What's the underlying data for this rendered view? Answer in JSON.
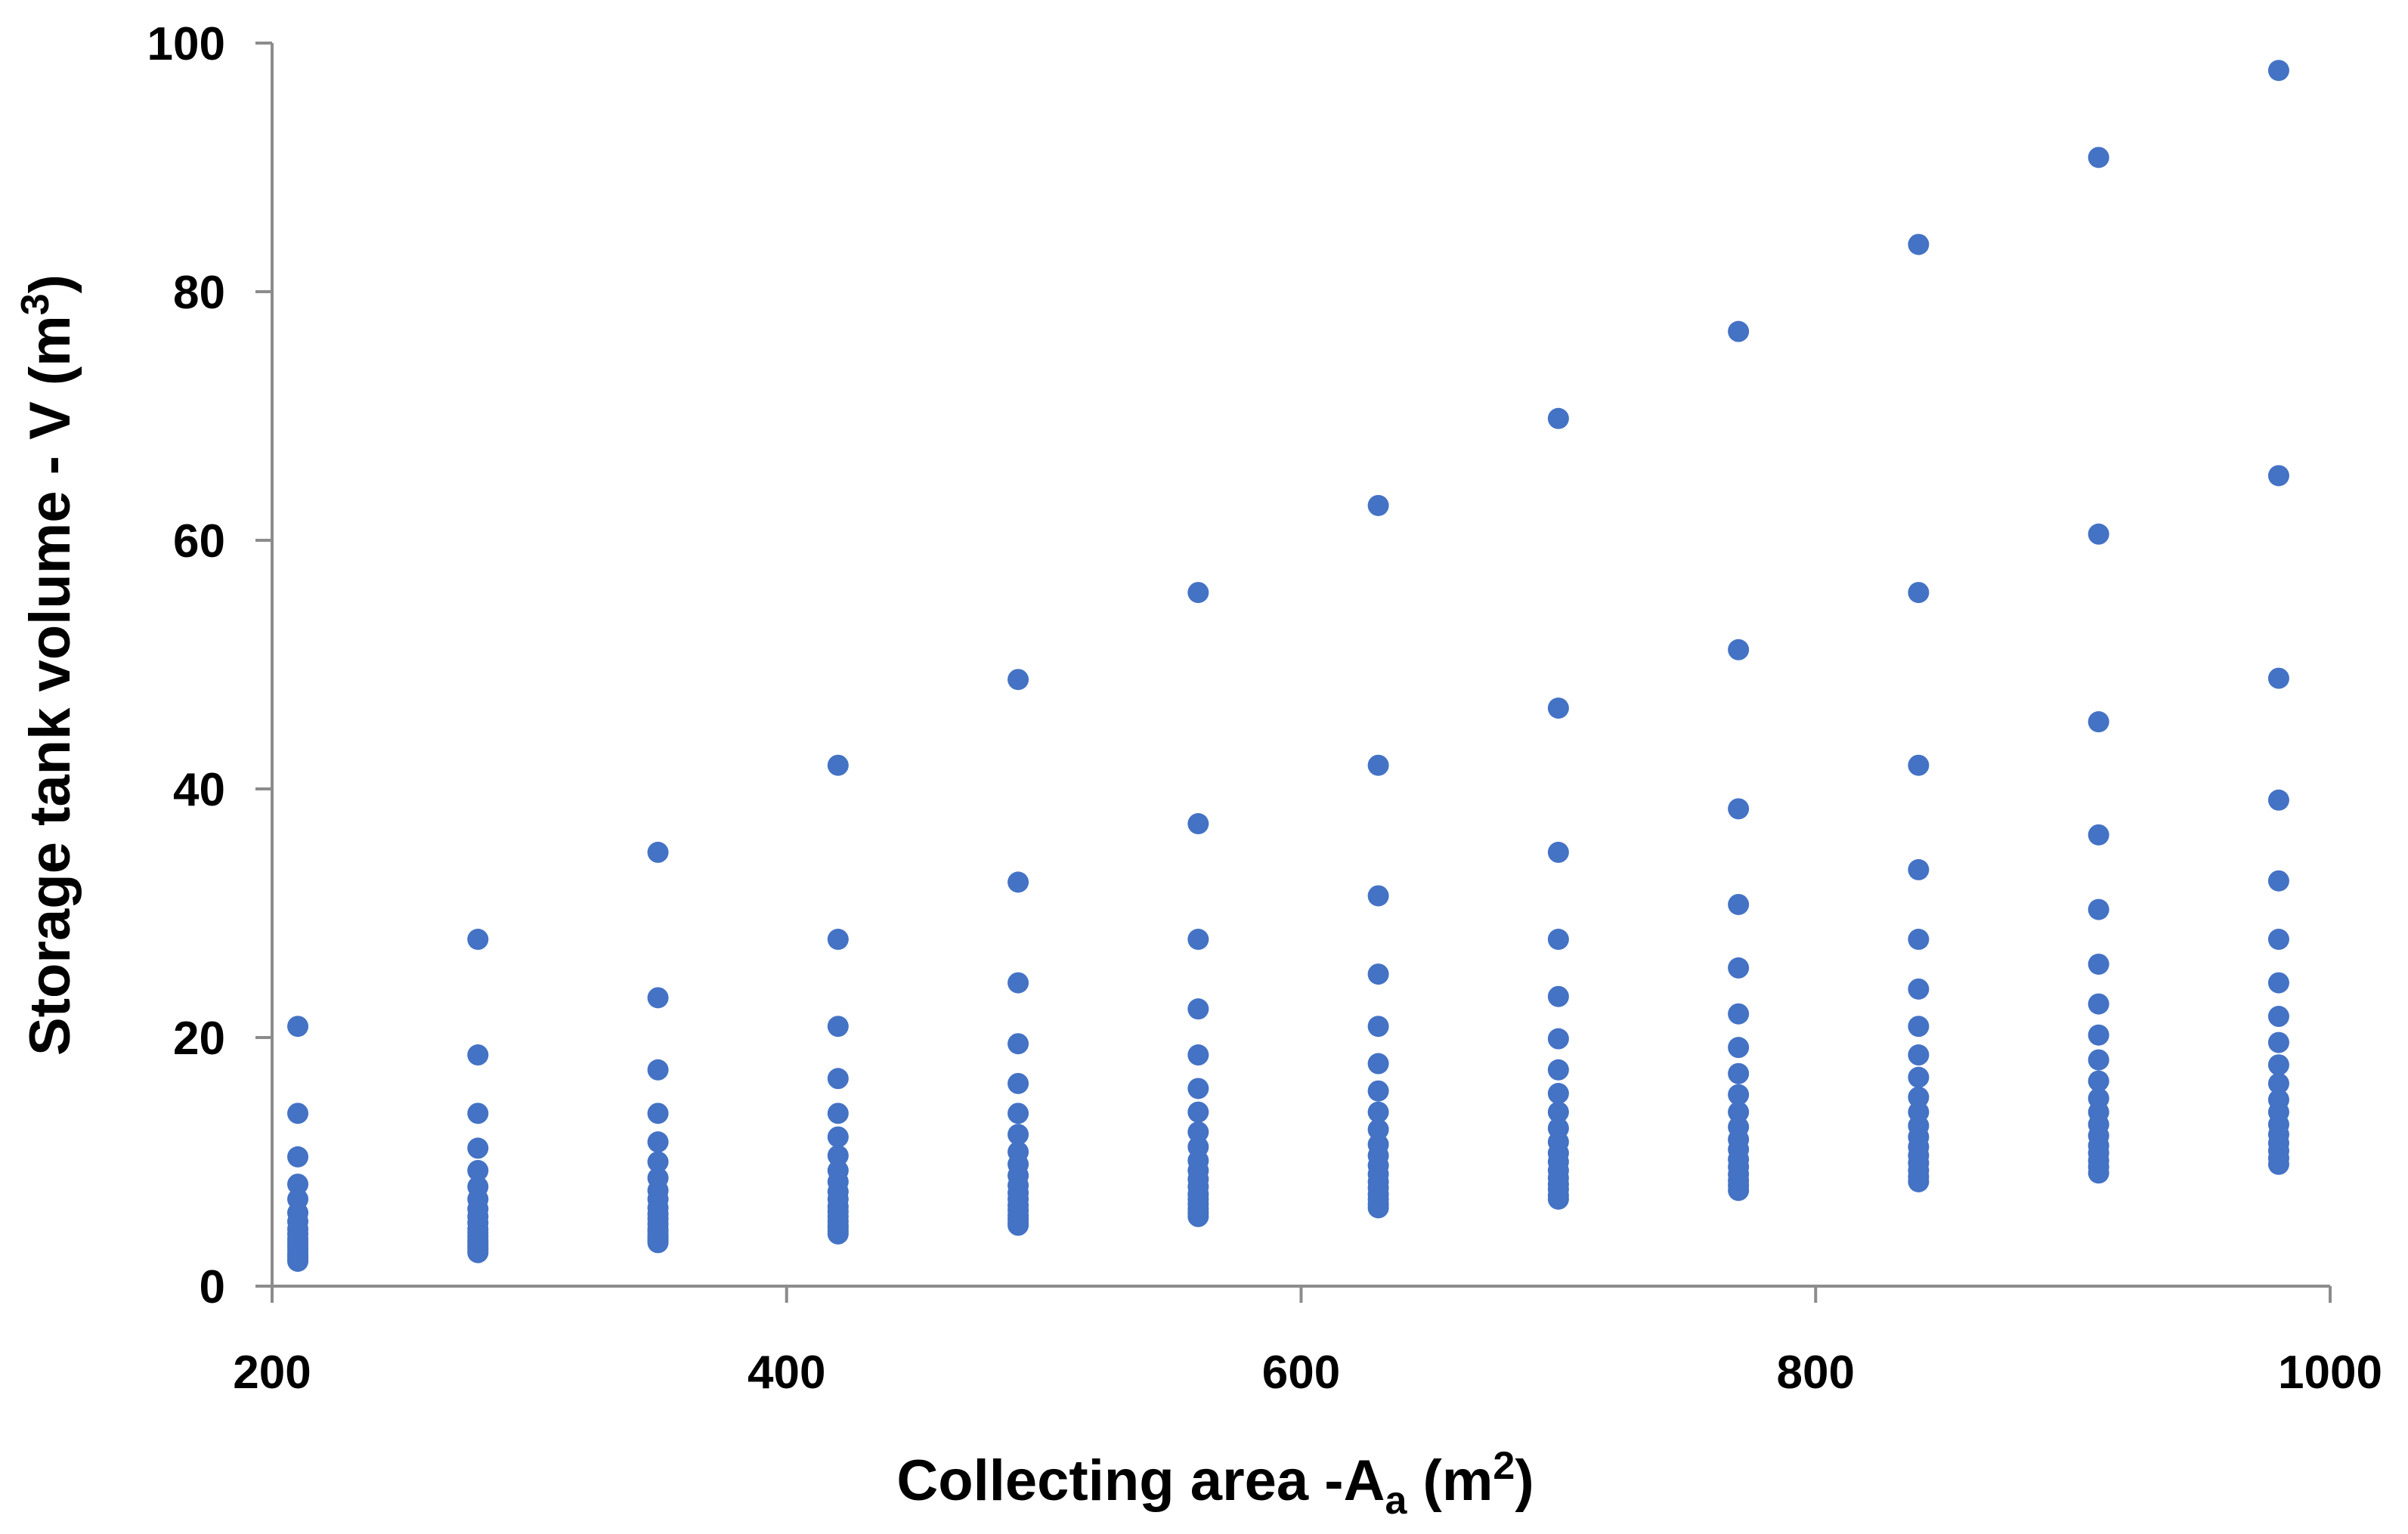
{
  "chart_data": {
    "type": "scatter",
    "title": "",
    "xlabel": {
      "main": "Collecting area -A",
      "sub": "a",
      "unit_open": " (m",
      "sup": "2",
      "unit_close": ")"
    },
    "ylabel": {
      "main": "Storage tank volume - V (m",
      "sup": "3",
      "unit_close": ")"
    },
    "xlim": [
      200,
      1000
    ],
    "ylim": [
      0,
      100
    ],
    "x_ticks": [
      200,
      400,
      600,
      800,
      1000
    ],
    "y_ticks": [
      0,
      20,
      40,
      60,
      80,
      100
    ],
    "grid": false,
    "legend": "none",
    "marker_color": "#4472C4",
    "series": [
      {
        "x": 210,
        "y": [
          20.9,
          13.9,
          10.4,
          8.2,
          7.0,
          5.9,
          5.2,
          4.6,
          4.2,
          3.8,
          3.5,
          3.2,
          2.9,
          2.6,
          2.4,
          2.2,
          2.0
        ]
      },
      {
        "x": 280,
        "y": [
          27.9,
          18.6,
          13.9,
          11.1,
          9.3,
          8.0,
          7.0,
          6.2,
          5.6,
          5.1,
          4.6,
          4.3,
          4.0,
          3.7,
          3.5,
          3.3,
          3.1,
          2.9,
          2.7
        ]
      },
      {
        "x": 350,
        "y": [
          34.9,
          23.2,
          17.4,
          13.9,
          11.6,
          10.0,
          8.7,
          7.7,
          7.0,
          6.3,
          5.8,
          5.4,
          5.0,
          4.6,
          4.4,
          4.1,
          3.9,
          3.7,
          3.5
        ]
      },
      {
        "x": 420,
        "y": [
          41.9,
          27.9,
          20.9,
          16.7,
          13.9,
          12.0,
          10.5,
          9.3,
          8.4,
          7.6,
          7.0,
          6.4,
          6.0,
          5.6,
          5.2,
          4.9,
          4.7,
          4.4,
          4.2
        ]
      },
      {
        "x": 490,
        "y": [
          48.8,
          32.5,
          24.4,
          19.5,
          16.3,
          13.9,
          12.2,
          10.8,
          9.8,
          8.9,
          8.1,
          7.5,
          7.0,
          6.5,
          6.1,
          5.7,
          5.4,
          5.1,
          4.9
        ]
      },
      {
        "x": 560,
        "y": [
          55.8,
          37.2,
          27.9,
          22.3,
          18.6,
          15.9,
          14.0,
          12.4,
          11.2,
          10.1,
          9.3,
          8.6,
          8.0,
          7.4,
          7.0,
          6.6,
          6.2,
          5.9,
          5.6
        ]
      },
      {
        "x": 630,
        "y": [
          62.8,
          41.9,
          31.4,
          25.1,
          20.9,
          17.9,
          15.7,
          14.0,
          12.6,
          11.4,
          10.5,
          9.7,
          9.0,
          8.4,
          7.9,
          7.4,
          7.0,
          6.6,
          6.3
        ]
      },
      {
        "x": 700,
        "y": [
          69.8,
          46.5,
          34.9,
          27.9,
          23.3,
          19.9,
          17.4,
          15.5,
          14.0,
          12.7,
          11.6,
          10.7,
          10.0,
          9.3,
          8.7,
          8.2,
          7.8,
          7.3,
          7.0
        ]
      },
      {
        "x": 770,
        "y": [
          76.8,
          51.2,
          38.4,
          30.7,
          25.6,
          21.9,
          19.2,
          17.1,
          15.4,
          14.0,
          12.8,
          11.8,
          11.0,
          10.2,
          9.6,
          9.0,
          8.5,
          8.1,
          7.7
        ]
      },
      {
        "x": 840,
        "y": [
          83.8,
          55.8,
          41.9,
          33.5,
          27.9,
          23.9,
          20.9,
          18.6,
          16.8,
          15.2,
          14.0,
          12.9,
          12.0,
          11.2,
          10.5,
          9.9,
          9.3,
          8.8,
          8.4
        ]
      },
      {
        "x": 910,
        "y": [
          90.8,
          60.5,
          45.4,
          36.3,
          30.3,
          25.9,
          22.7,
          20.2,
          18.2,
          16.5,
          15.1,
          14.0,
          13.0,
          12.1,
          11.3,
          10.7,
          10.1,
          9.6,
          9.1
        ]
      },
      {
        "x": 980,
        "y": [
          97.8,
          65.2,
          48.9,
          39.1,
          32.6,
          27.9,
          24.4,
          21.7,
          19.6,
          17.8,
          16.3,
          15.0,
          14.0,
          13.0,
          12.2,
          11.5,
          10.9,
          10.3,
          9.8
        ]
      }
    ]
  }
}
